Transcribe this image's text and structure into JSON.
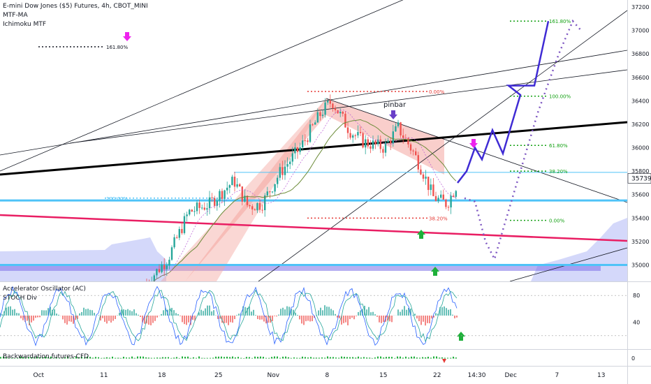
{
  "chart_data": {
    "type": "candlestick",
    "main_pane": {
      "title": "E-mini Dow Jones ($5) Futures, 4h, CBOT_MINI",
      "indicators": [
        "MTF-MA",
        "Ichimoku MTF"
      ],
      "y_ticks": [
        35000,
        35200,
        35400,
        35600,
        35800,
        36000,
        36200,
        36400,
        36600,
        36800,
        37000,
        37200
      ],
      "ylim": [
        34860,
        37260
      ],
      "last_price": {
        "label": "35739",
        "value": 35739,
        "color": "#131722"
      },
      "annotations": [
        {
          "text": "pinbar",
          "color": "#131722"
        }
      ],
      "fib_labels": {
        "left": [
          "161.80%",
          "100.00%",
          "38.20%",
          "0.00%"
        ],
        "right": [
          "161.80%",
          "100.00%",
          "61.80%",
          "38.20%",
          "0.00%"
        ]
      },
      "colors": {
        "up_candle": "#26a69a",
        "down_candle": "#ef5350",
        "trendline_thick": "#000000",
        "horizontal_level": "#4fc3f7",
        "red_trend": "#e91e63",
        "projection": "#3f2bd4",
        "projection_dotted": "#7e57c2",
        "fib_green": "#12a012",
        "fib_red": "#e53935",
        "ichimoku_cloud": "#9fa8f5",
        "pattern_fill": "#f4a6a0",
        "magenta_arrow": "#ee22ee",
        "purple_arrow": "#6a3fc8",
        "green_arrow": "#1eb03a"
      }
    },
    "oscillator_pane": {
      "title": "Accelerator Oscillator (AC)",
      "subtitle": "STOCH Div",
      "y_ticks": [
        40,
        80
      ],
      "ylim": [
        0,
        100
      ]
    },
    "cfd_pane": {
      "title": "Backwardation,futures-CFD",
      "y_ticks": [
        0
      ]
    },
    "x_ticks": [
      "Oct",
      "11",
      "18",
      "25",
      "Nov",
      "8",
      "15",
      "22",
      "14:30",
      "Dec",
      "7",
      "13"
    ]
  }
}
